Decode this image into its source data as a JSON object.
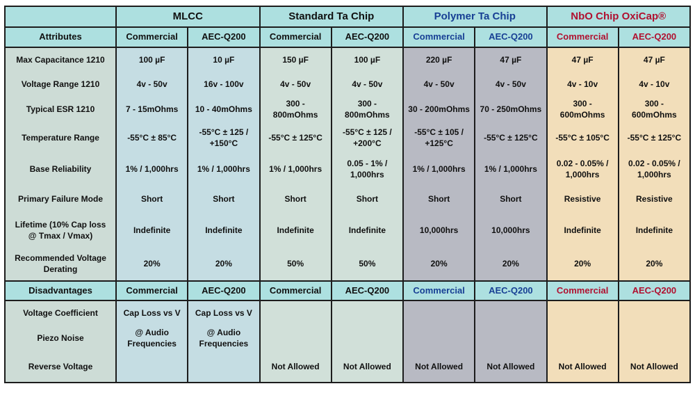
{
  "colors": {
    "header_bg": "#ade0e0",
    "attributes_col_bg": "#cddcd6",
    "mlcc_col_bg": "#c5dde3",
    "standard_ta_col_bg": "#d1e0d9",
    "polymer_col_bg": "#b8bac3",
    "nbo_col_bg": "#f2deba",
    "polymer_text": "#173f94",
    "nbo_text": "#b0102f",
    "border": "#1c1c1c"
  },
  "table": {
    "attributes_header": "Attributes",
    "disadvantages_header": "Disadvantages",
    "subheaders": [
      "Commercial",
      "AEC-Q200"
    ],
    "groups": [
      {
        "label": "MLCC"
      },
      {
        "label": "Standard Ta Chip"
      },
      {
        "label": "Polymer Ta Chip"
      },
      {
        "label": "NbO Chip OxiCap®"
      }
    ],
    "rows": [
      {
        "label": "Max Capacitance 1210",
        "values": [
          "100 µF",
          "10 µF",
          "150 µF",
          "100 µF",
          "220 µF",
          "47 µF",
          "47 µF",
          "47 µF"
        ]
      },
      {
        "label": "Voltage Range 1210",
        "values": [
          "4v - 50v",
          "16v - 100v",
          "4v - 50v",
          "4v - 50v",
          "4v - 50v",
          "4v - 50v",
          "4v - 10v",
          "4v - 10v"
        ]
      },
      {
        "label": "Typical ESR 1210",
        "values": [
          "7 - 15mOhms",
          "10 - 40mOhms",
          "300 - 800mOhms",
          "300 - 800mOhms",
          "30 - 200mOhms",
          "70 - 250mOhms",
          "300 - 600mOhms",
          "300 - 600mOhms"
        ]
      },
      {
        "label": "Temperature Range",
        "values": [
          "-55°C ± 85°C",
          "-55°C ± 125 /\n+150°C",
          "-55°C ± 125°C",
          "-55°C ± 125 /\n+200°C",
          "-55°C ± 105 /\n+125°C",
          "-55°C ± 125°C",
          "-55°C ± 105°C",
          "-55°C ± 125°C"
        ]
      },
      {
        "label": "Base Reliability",
        "values": [
          "1% / 1,000hrs",
          "1% / 1,000hrs",
          "1% / 1,000hrs",
          "0.05 - 1% /\n1,000hrs",
          "1% / 1,000hrs",
          "1% / 1,000hrs",
          "0.02 - 0.05% /\n1,000hrs",
          "0.02 - 0.05% /\n1,000hrs"
        ]
      },
      {
        "label": "Primary Failure Mode",
        "values": [
          "Short",
          "Short",
          "Short",
          "Short",
          "Short",
          "Short",
          "Resistive",
          "Resistive"
        ]
      },
      {
        "label": "Lifetime (10% Cap loss\n@ Tmax / Vmax)",
        "values": [
          "Indefinite",
          "Indefinite",
          "Indefinite",
          "Indefinite",
          "10,000hrs",
          "10,000hrs",
          "Indefinite",
          "Indefinite"
        ]
      },
      {
        "label": "Recommended Voltage\nDerating",
        "values": [
          "20%",
          "20%",
          "50%",
          "50%",
          "20%",
          "20%",
          "20%",
          "20%"
        ]
      }
    ],
    "disadvantage_rows": [
      {
        "label": "Voltage Coefficient",
        "values": [
          "Cap Loss vs V",
          "Cap Loss vs V",
          "",
          "",
          "",
          "",
          "",
          ""
        ]
      },
      {
        "label": "Piezo Noise",
        "values": [
          "@ Audio\nFrequencies",
          "@ Audio\nFrequencies",
          "",
          "",
          "",
          "",
          "",
          ""
        ]
      },
      {
        "label": "Reverse Voltage",
        "values": [
          "",
          "",
          "Not Allowed",
          "Not Allowed",
          "Not Allowed",
          "Not Allowed",
          "Not Allowed",
          "Not Allowed"
        ]
      }
    ]
  }
}
